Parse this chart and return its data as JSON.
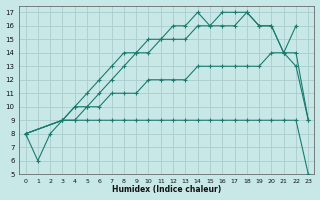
{
  "xlabel": "Humidex (Indice chaleur)",
  "background_color": "#c8e8e8",
  "grid_color": "#aacccc",
  "line_color": "#1a7a6e",
  "xlim": [
    -0.5,
    23.5
  ],
  "ylim": [
    5,
    17.5
  ],
  "xticks": [
    0,
    1,
    2,
    3,
    4,
    5,
    6,
    7,
    8,
    9,
    10,
    11,
    12,
    13,
    14,
    15,
    16,
    17,
    18,
    19,
    20,
    21,
    22,
    23
  ],
  "yticks": [
    5,
    6,
    7,
    8,
    9,
    10,
    11,
    12,
    13,
    14,
    15,
    16,
    17
  ],
  "line1_x": [
    0,
    1,
    2,
    3,
    4,
    5,
    6,
    7,
    8,
    9,
    10,
    11,
    12,
    13,
    14,
    15,
    16,
    17,
    18,
    19,
    20,
    21,
    22
  ],
  "line1_y": [
    8,
    6,
    8,
    9,
    10,
    11,
    12,
    13,
    14,
    14,
    15,
    15,
    16,
    16,
    17,
    16,
    17,
    17,
    17,
    16,
    16,
    14,
    16
  ],
  "line2_x": [
    0,
    3,
    4,
    5,
    6,
    7,
    8,
    9,
    10,
    11,
    12,
    13,
    14,
    15,
    16,
    17,
    18,
    19,
    20,
    21,
    22,
    23
  ],
  "line2_y": [
    8,
    9,
    10,
    10,
    11,
    12,
    13,
    14,
    14,
    15,
    15,
    15,
    16,
    16,
    16,
    16,
    17,
    16,
    16,
    14,
    13,
    9
  ],
  "line3_x": [
    0,
    3,
    4,
    5,
    6,
    7,
    8,
    9,
    10,
    11,
    12,
    13,
    14,
    15,
    16,
    17,
    18,
    19,
    20,
    21,
    22,
    23
  ],
  "line3_y": [
    8,
    9,
    9,
    10,
    10,
    11,
    11,
    11,
    12,
    12,
    12,
    12,
    13,
    13,
    13,
    13,
    13,
    13,
    14,
    14,
    14,
    9
  ],
  "line4_x": [
    0,
    3,
    4,
    5,
    6,
    7,
    8,
    9,
    10,
    11,
    12,
    13,
    14,
    15,
    16,
    17,
    18,
    19,
    20,
    21,
    22,
    23
  ],
  "line4_y": [
    8,
    9,
    9,
    9,
    9,
    9,
    9,
    9,
    9,
    9,
    9,
    9,
    9,
    9,
    9,
    9,
    9,
    9,
    9,
    9,
    9,
    5
  ]
}
